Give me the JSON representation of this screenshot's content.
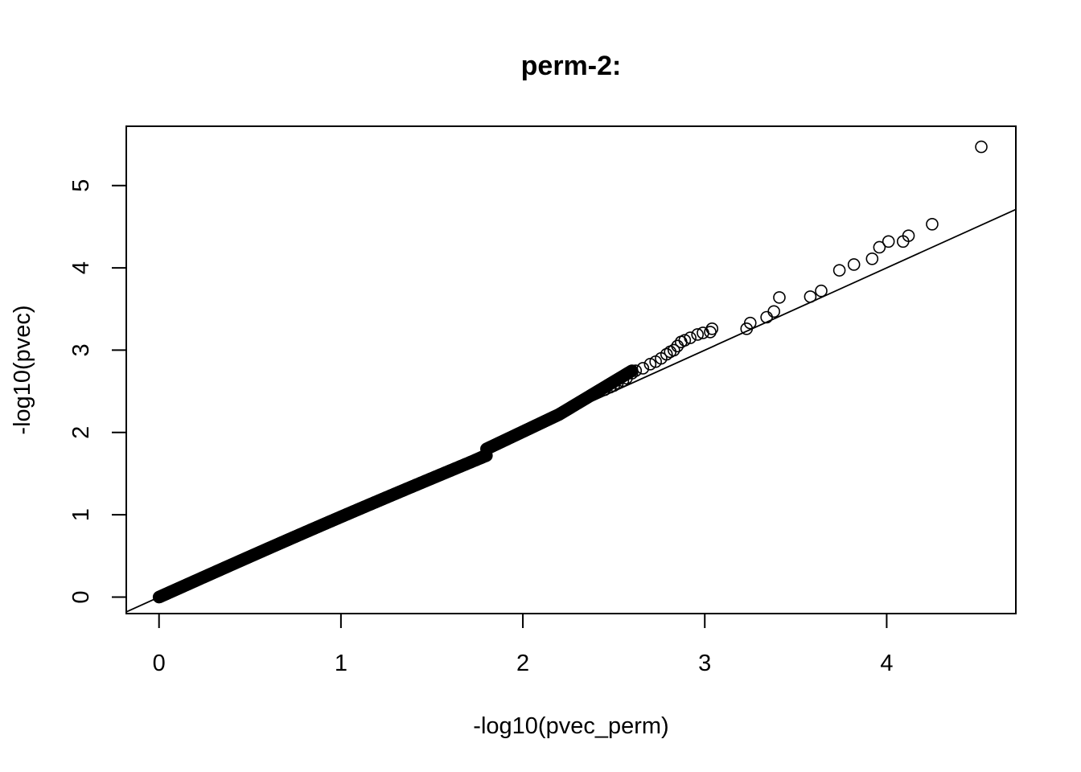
{
  "chart_data": {
    "type": "scatter",
    "title": "perm-2:",
    "xlabel": "-log10(pvec_perm)",
    "ylabel": "-log10(pvec)",
    "xlim": [
      -0.18,
      4.71
    ],
    "ylim": [
      -0.2,
      5.72
    ],
    "x_ticks": [
      0,
      1,
      2,
      3,
      4
    ],
    "x_tick_labels": [
      "0",
      "1",
      "2",
      "3",
      "4"
    ],
    "y_ticks": [
      0,
      1,
      2,
      3,
      4,
      5
    ],
    "y_tick_labels": [
      "0",
      "1",
      "2",
      "3",
      "4",
      "5"
    ],
    "grid": false,
    "reference_line": {
      "intercept": 0,
      "slope": 1
    },
    "marker": "open-circle",
    "colors": {
      "points": "#000000",
      "line": "#000000",
      "axes": "#000000"
    },
    "dense_segments": [
      {
        "x_from": 0.0,
        "x_to": 1.8,
        "slope": 1.0,
        "offset_end": -0.08
      },
      {
        "x_from": 1.8,
        "x_to": 2.2,
        "slope": 1.0,
        "offset_start": 0.0,
        "offset_end": 0.02
      },
      {
        "x_from": 2.2,
        "x_to": 2.6,
        "slope": 1.0,
        "offset_start": 0.02,
        "offset_end": 0.15
      }
    ],
    "points": [
      [
        2.4,
        2.48
      ],
      [
        2.42,
        2.5
      ],
      [
        2.45,
        2.52
      ],
      [
        2.48,
        2.55
      ],
      [
        2.5,
        2.57
      ],
      [
        2.52,
        2.6
      ],
      [
        2.55,
        2.63
      ],
      [
        2.57,
        2.66
      ],
      [
        2.6,
        2.72
      ],
      [
        2.62,
        2.75
      ],
      [
        2.66,
        2.78
      ],
      [
        2.7,
        2.83
      ],
      [
        2.73,
        2.86
      ],
      [
        2.76,
        2.9
      ],
      [
        2.79,
        2.95
      ],
      [
        2.81,
        2.98
      ],
      [
        2.83,
        3.0
      ],
      [
        2.85,
        3.05
      ],
      [
        2.87,
        3.1
      ],
      [
        2.89,
        3.12
      ],
      [
        2.92,
        3.15
      ],
      [
        2.96,
        3.19
      ],
      [
        2.99,
        3.21
      ],
      [
        3.03,
        3.22
      ],
      [
        3.04,
        3.26
      ],
      [
        3.23,
        3.26
      ],
      [
        3.25,
        3.33
      ],
      [
        3.34,
        3.4
      ],
      [
        3.38,
        3.47
      ],
      [
        3.41,
        3.64
      ],
      [
        3.58,
        3.65
      ],
      [
        3.64,
        3.72
      ],
      [
        3.74,
        3.97
      ],
      [
        3.82,
        4.04
      ],
      [
        3.92,
        4.11
      ],
      [
        3.96,
        4.25
      ],
      [
        4.01,
        4.32
      ],
      [
        4.09,
        4.32
      ],
      [
        4.12,
        4.39
      ],
      [
        4.25,
        4.53
      ],
      [
        4.52,
        5.47
      ]
    ]
  }
}
